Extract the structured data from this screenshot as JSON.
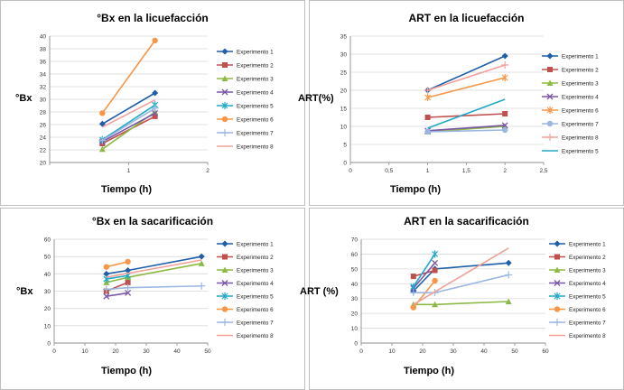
{
  "colors": {
    "Experimento 1": "#1f5ea8",
    "Experimento 2": "#c0504d",
    "Experimento 3": "#8dba45",
    "Experimento 4": "#7a56a6",
    "Experimento 5": "#21a8c8",
    "Experimento 6": "#f79646",
    "Experimento 7": "#9bb7e0",
    "Experimento 8": "#f2a09a"
  },
  "chart_data": [
    {
      "type": "line",
      "title": "°Bx en la licuefacción",
      "ylabel": "°Bx",
      "xlabel": "Tiempo (h)",
      "xlim": [
        0,
        3
      ],
      "ylim": [
        20,
        40
      ],
      "xticks": [
        "",
        "1",
        "2"
      ],
      "yticks": [
        "20",
        "22",
        "24",
        "26",
        "28",
        "30",
        "32",
        "34",
        "36",
        "38",
        "40"
      ],
      "x": [
        1,
        2
      ],
      "series": [
        {
          "name": "Experimento 1",
          "values": [
            26.1,
            31.0
          ]
        },
        {
          "name": "Experimento 2",
          "values": [
            23.0,
            27.3
          ]
        },
        {
          "name": "Experimento 3",
          "values": [
            22.1,
            28.0
          ]
        },
        {
          "name": "Experimento 4",
          "values": [
            23.3,
            27.8
          ]
        },
        {
          "name": "Experimento 5",
          "values": [
            23.6,
            29.1
          ]
        },
        {
          "name": "Experimento 6",
          "values": [
            27.8,
            39.3
          ]
        },
        {
          "name": "Experimento 7",
          "values": [
            23.5,
            28.6
          ]
        },
        {
          "name": "Experimento 8",
          "values": [
            25.6,
            29.9
          ]
        }
      ]
    },
    {
      "type": "line",
      "title": "ART en la licuefacción",
      "ylabel": "ART(%)",
      "xlabel": "Tiempo (h)",
      "xlim": [
        0,
        2.5
      ],
      "ylim": [
        0,
        35
      ],
      "xticks": [
        "0",
        "0,5",
        "1",
        "1,5",
        "2",
        "2,5"
      ],
      "yticks": [
        "0",
        "5",
        "10",
        "15",
        "20",
        "25",
        "30",
        "35"
      ],
      "x": [
        1,
        2
      ],
      "series": [
        {
          "name": "Experimento 1",
          "values": [
            20.0,
            29.5
          ]
        },
        {
          "name": "Experimento 2",
          "values": [
            12.5,
            13.5
          ]
        },
        {
          "name": "Experimento 3",
          "values": [
            8.5,
            10.0
          ]
        },
        {
          "name": "Experimento 4",
          "values": [
            8.8,
            10.3
          ]
        },
        {
          "name": "Experimento 6",
          "values": [
            18.0,
            23.5
          ]
        },
        {
          "name": "Experimento 7",
          "values": [
            8.5,
            9.0
          ]
        },
        {
          "name": "Experimento 8",
          "values": [
            20.0,
            27.0
          ]
        },
        {
          "name": "Experimento 5",
          "values": [
            9.5,
            17.5
          ]
        }
      ]
    },
    {
      "type": "line",
      "title": "°Bx en la sacarificación",
      "ylabel": "°Bx",
      "xlabel": "Tiempo (h)",
      "xlim": [
        0,
        50
      ],
      "ylim": [
        0,
        60
      ],
      "xticks": [
        "0",
        "10",
        "20",
        "30",
        "40",
        "50"
      ],
      "yticks": [
        "0",
        "10",
        "20",
        "30",
        "40",
        "50",
        "60"
      ],
      "series": [
        {
          "name": "Experimento 1",
          "x": [
            17,
            24,
            48
          ],
          "values": [
            40,
            42,
            50
          ]
        },
        {
          "name": "Experimento 2",
          "x": [
            17,
            24
          ],
          "values": [
            30,
            35
          ]
        },
        {
          "name": "Experimento 3",
          "x": [
            17,
            24,
            48
          ],
          "values": [
            35,
            38,
            46
          ]
        },
        {
          "name": "Experimento 4",
          "x": [
            17,
            24
          ],
          "values": [
            27,
            29
          ]
        },
        {
          "name": "Experimento 5",
          "x": [
            17,
            24
          ],
          "values": [
            37,
            39
          ]
        },
        {
          "name": "Experimento 6",
          "x": [
            17,
            24
          ],
          "values": [
            44,
            47
          ]
        },
        {
          "name": "Experimento 7",
          "x": [
            17,
            24,
            48
          ],
          "values": [
            31,
            32,
            33
          ]
        },
        {
          "name": "Experimento 8",
          "x": [
            17,
            48
          ],
          "values": [
            38,
            48
          ]
        }
      ]
    },
    {
      "type": "line",
      "title": "ART en la sacarificación",
      "ylabel": "ART (%)",
      "xlabel": "Tiempo  (h)",
      "xlim": [
        0,
        60
      ],
      "ylim": [
        0,
        70
      ],
      "xticks": [
        "0",
        "10",
        "20",
        "30",
        "40",
        "50",
        "60"
      ],
      "yticks": [
        "0",
        "10",
        "20",
        "30",
        "40",
        "50",
        "60",
        "70"
      ],
      "series": [
        {
          "name": "Experimento 1",
          "x": [
            17,
            24,
            48
          ],
          "values": [
            35,
            50,
            54
          ]
        },
        {
          "name": "Experimento 2",
          "x": [
            17,
            24
          ],
          "values": [
            45,
            49
          ]
        },
        {
          "name": "Experimento 3",
          "x": [
            17,
            24,
            48
          ],
          "values": [
            26,
            26,
            28
          ]
        },
        {
          "name": "Experimento 4",
          "x": [
            17,
            24
          ],
          "values": [
            37,
            54
          ]
        },
        {
          "name": "Experimento 5",
          "x": [
            17,
            24
          ],
          "values": [
            38,
            60
          ]
        },
        {
          "name": "Experimento 6",
          "x": [
            17,
            24
          ],
          "values": [
            24,
            42
          ]
        },
        {
          "name": "Experimento 7",
          "x": [
            17,
            24,
            48
          ],
          "values": [
            34,
            34,
            46
          ]
        },
        {
          "name": "Experimento 8",
          "x": [
            17,
            48
          ],
          "values": [
            26,
            64
          ]
        }
      ]
    }
  ]
}
